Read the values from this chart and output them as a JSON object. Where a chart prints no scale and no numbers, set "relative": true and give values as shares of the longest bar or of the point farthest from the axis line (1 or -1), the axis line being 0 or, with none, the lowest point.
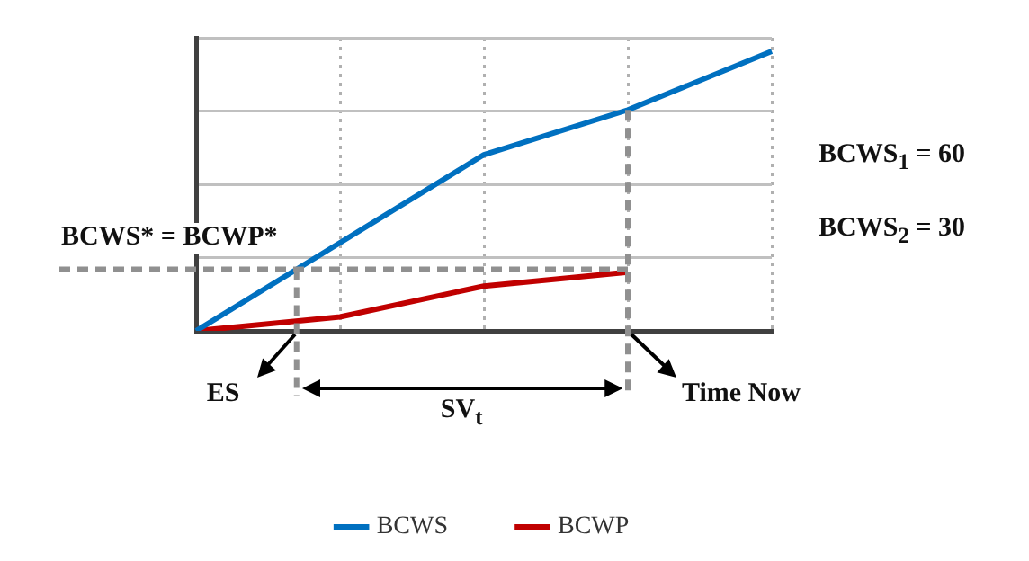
{
  "chart_data": {
    "type": "line",
    "relative": true,
    "categories": [
      null,
      null,
      null,
      null,
      null
    ],
    "grid": true,
    "legend": "bottom",
    "marker": "none",
    "line_style": "solid",
    "series": [
      {
        "name": "BCWS",
        "color": "#0070c0",
        "values": [
          0,
          0.315,
          0.63,
          0.79,
          1
        ]
      },
      {
        "name": "BCWP",
        "color": "#c00000",
        "values": [
          0,
          0.05,
          0.16,
          0.21,
          null
        ]
      }
    ],
    "ref_lines": [
      {
        "axis": "y",
        "value": 0.22,
        "label": "BCWS* = BCWP*",
        "color": "#909090",
        "line_style": "dashed"
      }
    ],
    "annotations": [
      "ES",
      "SV$_{t}$",
      "Time Now",
      "BCWS$_{1}$ = 60",
      "BCWS$_{2}$ = 30"
    ]
  }
}
